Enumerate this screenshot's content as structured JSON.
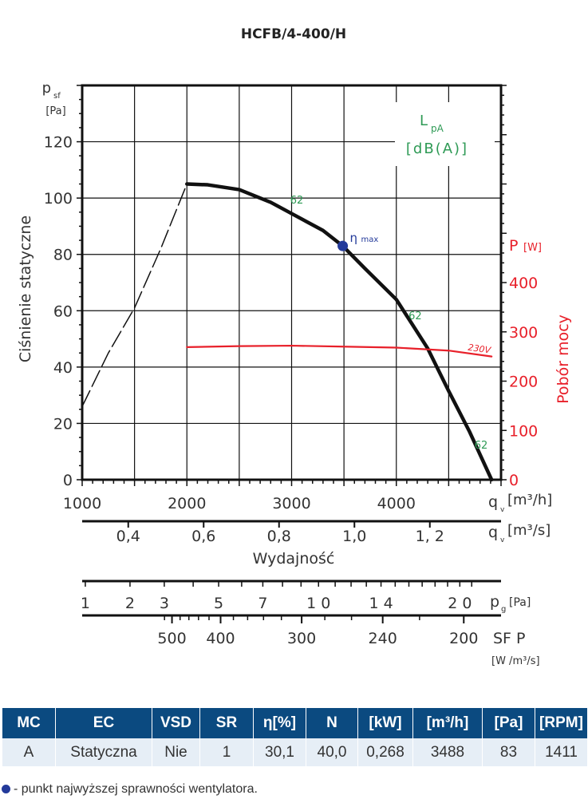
{
  "chart_data": {
    "type": "line",
    "title": "HCFB/4-400/H",
    "xlabel": "Wydajność",
    "x_unit_label": "q",
    "x_unit_sub": "v",
    "x_unit_h": "[m³/h]",
    "x_unit_s": "[m³/s]",
    "xlim": [
      1000,
      5000
    ],
    "x_ticks": [
      1000,
      2000,
      3000,
      4000
    ],
    "x_ticks_s": [
      "0,4",
      "0,6",
      "0,8",
      "1,0",
      "1, 2"
    ],
    "x_ticks_s_values": [
      0.4,
      0.6,
      0.8,
      1.0,
      1.2
    ],
    "ylabel": "Ciśnienie statyczne",
    "y_unit": "p",
    "y_unit_sub": "sf",
    "y_unit2": "[Pa]",
    "ylim": [
      0,
      140
    ],
    "y_ticks": [
      0,
      20,
      40,
      60,
      80,
      100,
      120
    ],
    "y2label": "Pobór mocy",
    "y2_unit": "P",
    "y2_unit2": "[W]",
    "y2lim": [
      0,
      800
    ],
    "y2_ticks": [
      0,
      100,
      200,
      300,
      400
    ],
    "grid": true,
    "legend_title": "L",
    "legend_sub": "pA",
    "legend_unit": "[dB(A)]",
    "series": [
      {
        "name": "pressure",
        "color": "#111111",
        "x": [
          2000,
          2200,
          2500,
          2800,
          3000,
          3300,
          3488,
          3700,
          4000,
          4300,
          4500,
          4700,
          4910
        ],
        "y": [
          105,
          104.7,
          103,
          98.5,
          94.5,
          88.5,
          83,
          75,
          64,
          46.6,
          31.5,
          17,
          0
        ]
      },
      {
        "name": "pressure-unstable",
        "color": "#111111",
        "dashed": true,
        "x": [
          1000,
          1250,
          1500,
          1750,
          2000
        ],
        "y": [
          26,
          45,
          61,
          82,
          105
        ]
      },
      {
        "name": "230V",
        "axis": "right",
        "color": "#e8202a",
        "x": [
          2000,
          2500,
          3000,
          3500,
          4000,
          4500,
          4910
        ],
        "y": [
          269,
          271,
          272,
          270,
          268,
          262,
          250
        ]
      }
    ],
    "sound_labels": [
      {
        "x": 3050,
        "y": 98,
        "text": "62"
      },
      {
        "x": 4180,
        "y": 57,
        "text": "62"
      },
      {
        "x": 4810,
        "y": 11,
        "text": "62"
      }
    ],
    "eta_point": {
      "x": 3488,
      "y": 83,
      "label": "η",
      "label_sub": "max",
      "color": "#233a9a"
    },
    "pg_scale": {
      "label": "p",
      "label_sub": "g",
      "unit": "[Pa]",
      "ticks": [
        "1",
        "2",
        "3",
        "5",
        "7",
        "1 0",
        "1 4",
        "2 0"
      ],
      "values": [
        1,
        2,
        3,
        5,
        7,
        10,
        14,
        20
      ]
    },
    "sfp_scale": {
      "label": "SF P",
      "unit": "[W /m³/s]",
      "ticks": [
        "500",
        "400",
        "300",
        "240",
        "200"
      ],
      "values": [
        500,
        400,
        300,
        240,
        200
      ]
    }
  },
  "table": {
    "headers": [
      "MC",
      "EC",
      "VSD",
      "SR",
      "η[%]",
      "N",
      "[kW]",
      "[m³/h]",
      "[Pa]",
      "[RPM]"
    ],
    "row": [
      "A",
      "Statyczna",
      "Nie",
      "1",
      "30,1",
      "40,0",
      "0,268",
      "3488",
      "83",
      "1411"
    ]
  },
  "note": "- punkt najwyższej sprawności wentylatora."
}
